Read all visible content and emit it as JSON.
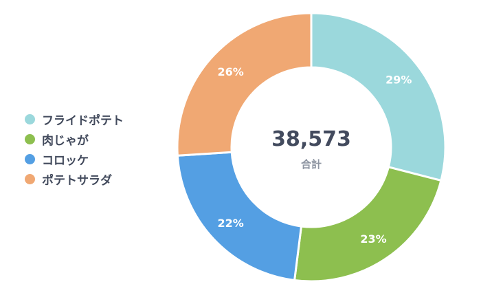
{
  "chart_data": {
    "type": "pie",
    "donut": true,
    "categories": [
      "フライドポテト",
      "肉じゃが",
      "コロッケ",
      "ポテトサラダ"
    ],
    "values": [
      29,
      23,
      22,
      26
    ],
    "value_labels": [
      "29%",
      "23%",
      "22%",
      "26%"
    ],
    "colors": [
      "#9bd8dc",
      "#8dbf4f",
      "#549fe3",
      "#f0a873"
    ],
    "center_value": "38,573",
    "center_label": "合計",
    "legend_position": "left"
  }
}
